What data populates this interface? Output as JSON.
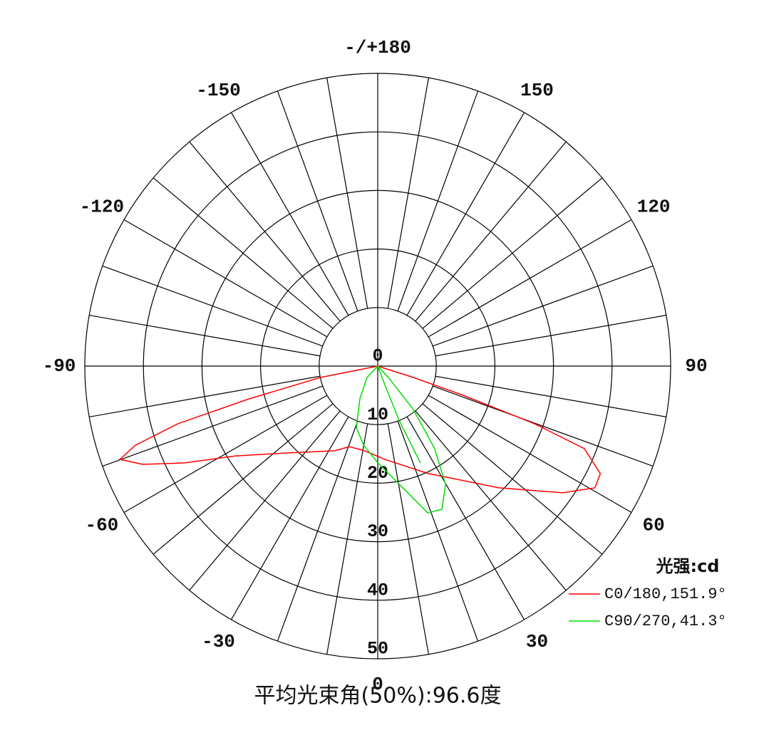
{
  "chart_data": {
    "type": "polar",
    "title": "平均光束角(50%):96.6度",
    "legend_title": "光强:cd",
    "rlim": [
      0,
      50
    ],
    "rticks": [
      0,
      10,
      20,
      30,
      40,
      50
    ],
    "angle_ticks": [
      {
        "value": 180,
        "label": "-/+180"
      },
      150,
      120,
      90,
      60,
      30,
      0,
      -30,
      -60,
      -90,
      -120,
      -150
    ],
    "series": [
      {
        "name": "C0/180,151.9°",
        "color": "#ff0000",
        "theta": [
          -80,
          -78.7,
          -75.7,
          -73.9,
          -71.9,
          -70.1,
          -67.3,
          -63.3,
          -57.8,
          -46.8,
          -26.8,
          -19.5,
          -9.6,
          4.4,
          24.9,
          44.8,
          55.6,
          60.7,
          64.2,
          68.2,
          69.8,
          71.1,
          72.3,
          75
        ],
        "values": [
          0,
          9.9,
          22.6,
          35.5,
          43.5,
          46.8,
          43.5,
          36.8,
          28.8,
          21.7,
          16.2,
          14.6,
          14.6,
          16.0,
          20.2,
          29.3,
          38.3,
          42.5,
          42.2,
          38.0,
          28.5,
          15.4,
          6.4,
          0
        ]
      },
      {
        "name": "C90/270,41.3°",
        "color": "#00dd00",
        "theta": [
          -45,
          -43,
          -28.5,
          -19.2,
          -10.2,
          0,
          11.6,
          18.8,
          24.1,
          29.8,
          34.6,
          39.3,
          43.2,
          45,
          21,
          21.5,
          23.8
        ],
        "values": [
          0,
          2.7,
          6.4,
          11.1,
          13.7,
          16.5,
          21.2,
          26.5,
          26.8,
          23.3,
          17.1,
          9.6,
          2.7,
          0,
          3.4,
          10,
          18.1
        ]
      }
    ]
  }
}
